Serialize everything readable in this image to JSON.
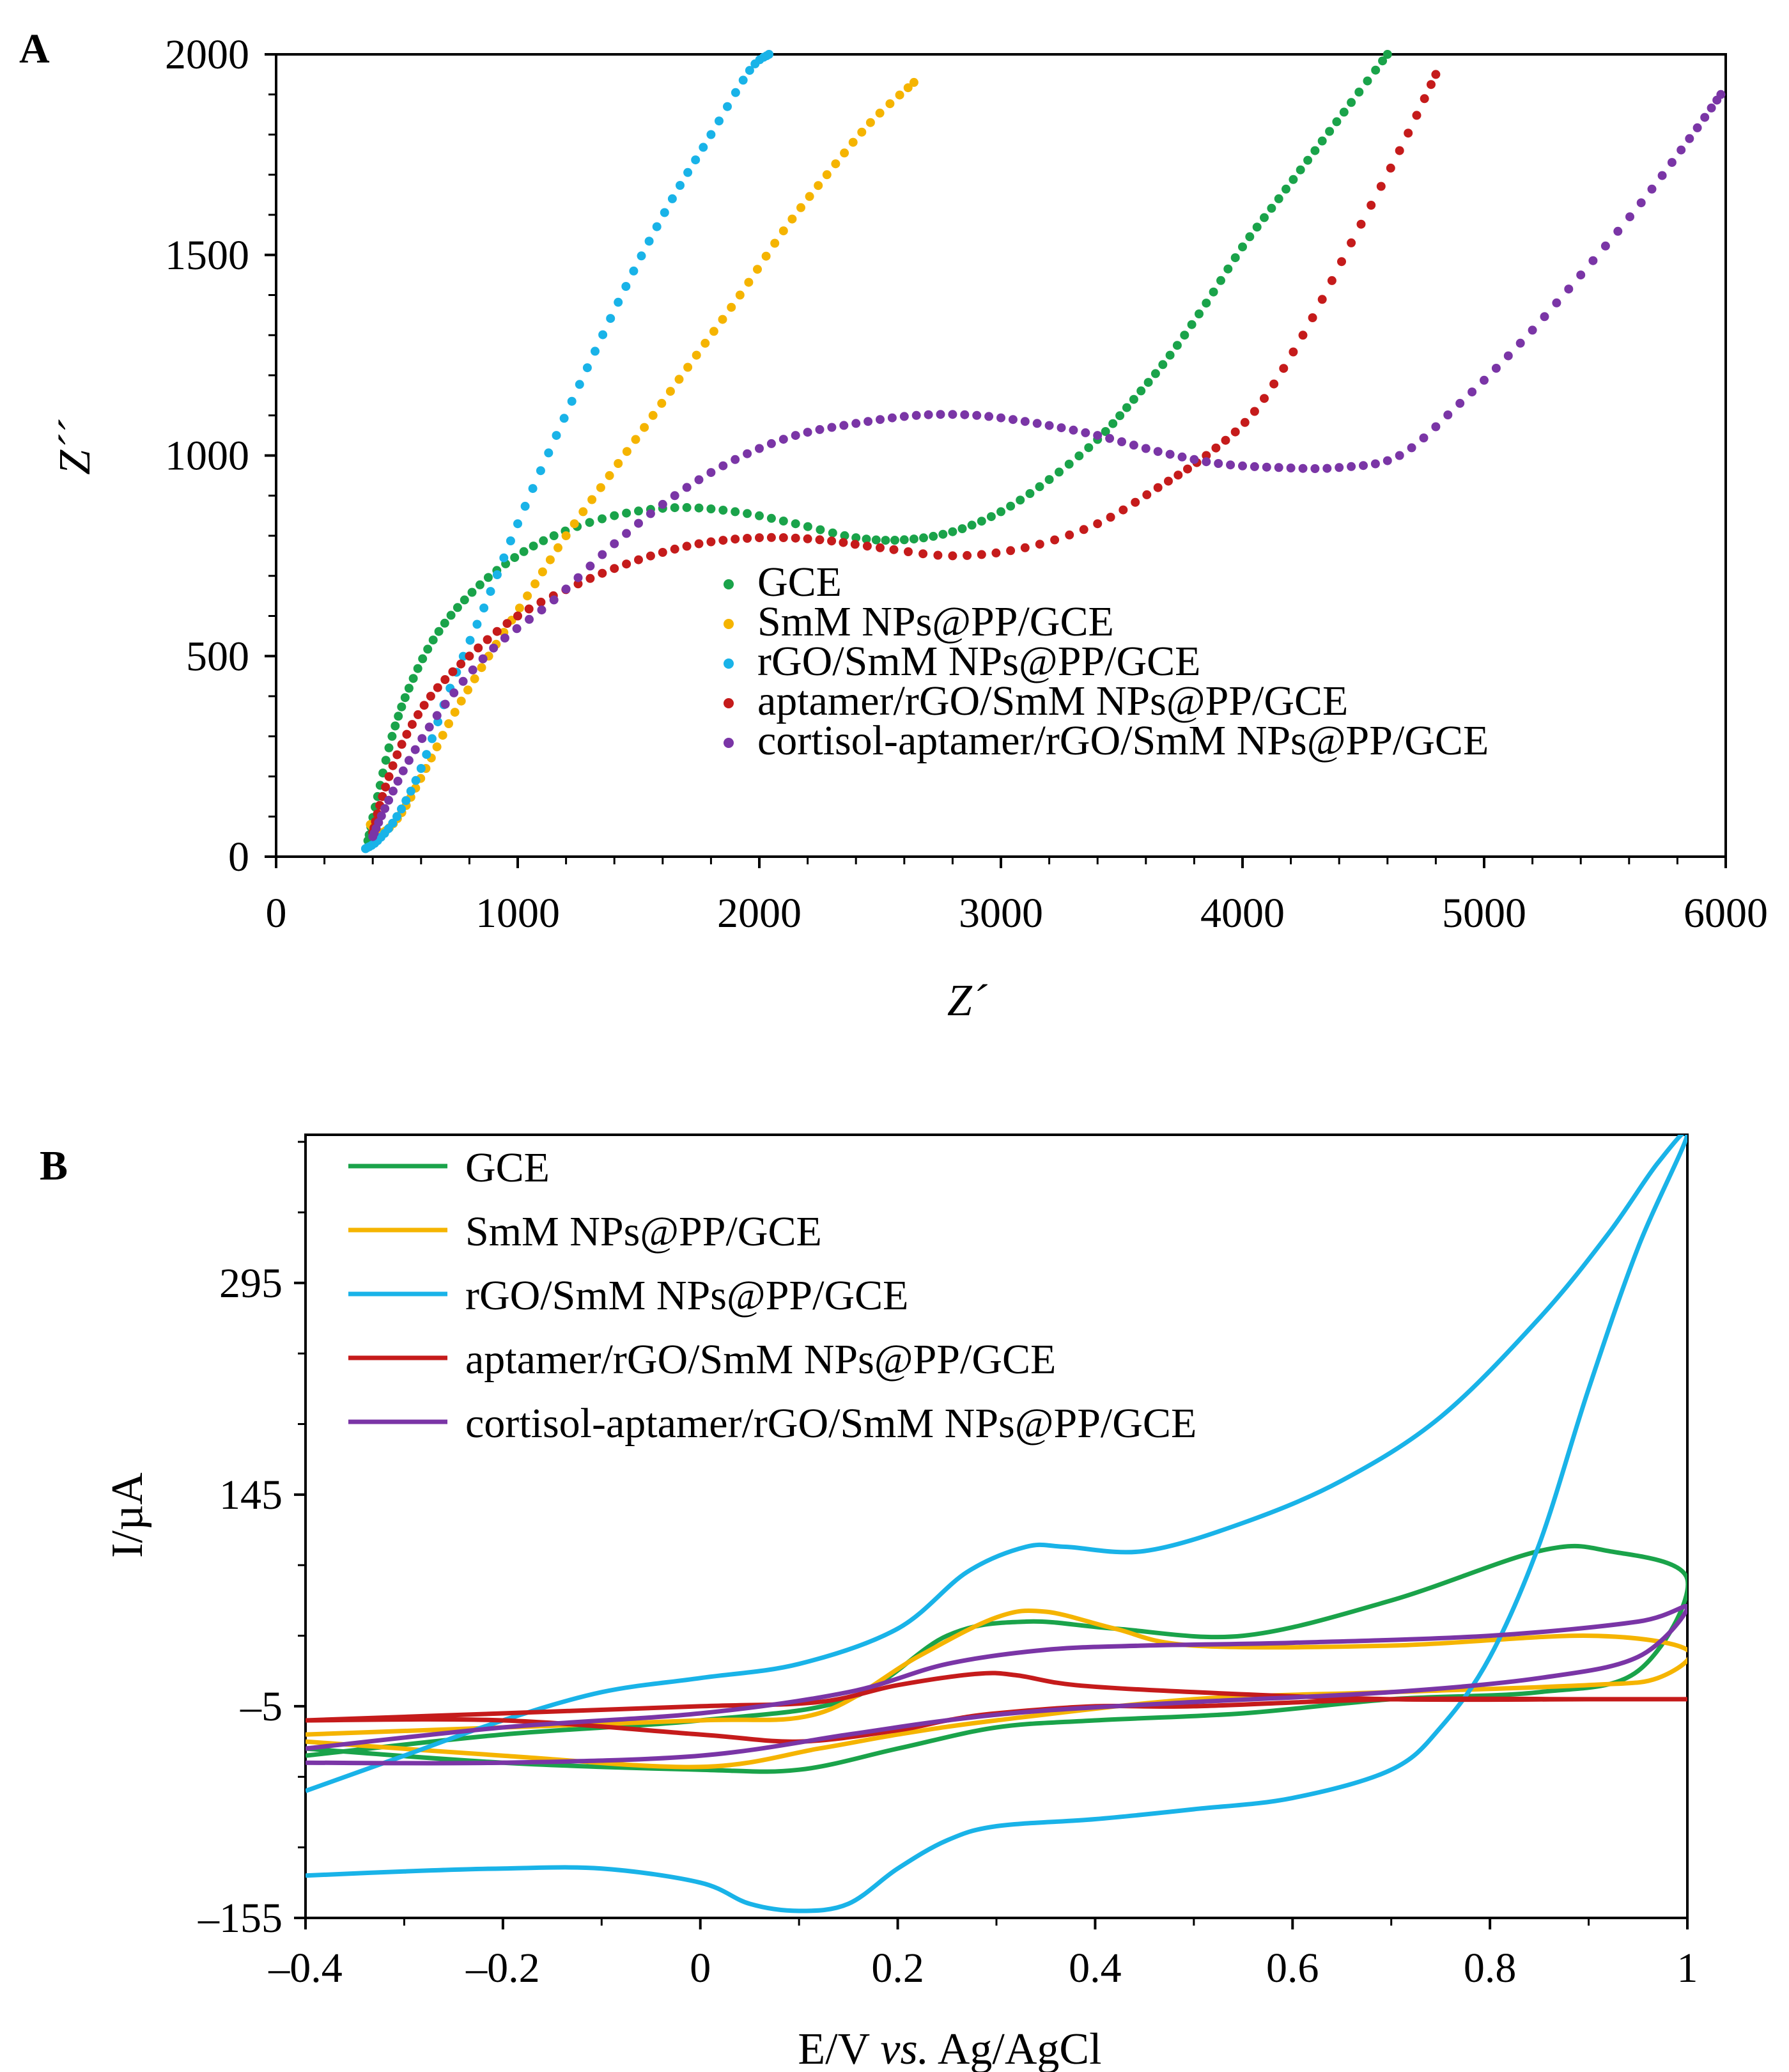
{
  "chart_data": [
    {
      "panel": "A",
      "type": "scatter",
      "title": "",
      "xlabel": "Z´",
      "ylabel": "Z´´",
      "xlim": [
        0,
        6000
      ],
      "ylim": [
        0,
        2000
      ],
      "xticks": [
        0,
        1000,
        2000,
        3000,
        4000,
        5000,
        6000
      ],
      "yticks": [
        0,
        500,
        1000,
        1500,
        2000
      ],
      "grid": false,
      "legend_position": "bottom-right",
      "series": [
        {
          "name": "GCE",
          "color": "#1aa34a",
          "x": [
            380,
            420,
            480,
            550,
            650,
            780,
            950,
            1150,
            1400,
            1650,
            1900,
            2150,
            2400,
            2600,
            2800,
            3000,
            3200,
            3400,
            3550,
            3700,
            3850,
            4000,
            4150,
            4300,
            4450,
            4600
          ],
          "y": [
            40,
            150,
            300,
            420,
            540,
            640,
            730,
            800,
            850,
            870,
            860,
            830,
            795,
            790,
            810,
            860,
            940,
            1040,
            1140,
            1250,
            1380,
            1520,
            1640,
            1760,
            1880,
            2000
          ]
        },
        {
          "name": "SmM NPs@PP/GCE",
          "color": "#f5b400",
          "x": [
            390,
            440,
            520,
            620,
            740,
            880,
            1040,
            1200,
            1380,
            1560,
            1740,
            1920,
            2100,
            2280,
            2460,
            2640
          ],
          "y": [
            80,
            60,
            110,
            220,
            360,
            500,
            650,
            800,
            950,
            1100,
            1250,
            1400,
            1560,
            1700,
            1830,
            1930
          ]
        },
        {
          "name": "rGO/SmM NPs@PP/GCE",
          "color": "#19b3e8",
          "x": [
            370,
            420,
            500,
            600,
            720,
            860,
            1000,
            1160,
            1320,
            1480,
            1640,
            1800,
            1960,
            2040
          ],
          "y": [
            20,
            40,
            100,
            220,
            420,
            620,
            830,
            1050,
            1260,
            1460,
            1640,
            1800,
            1960,
            2000
          ]
        },
        {
          "name": "aptamer/rGO/SmM NPs@PP/GCE",
          "color": "#c51b1b",
          "x": [
            400,
            440,
            520,
            640,
            800,
            1000,
            1250,
            1500,
            1750,
            2000,
            2250,
            2500,
            2800,
            3100,
            3400,
            3650,
            3850,
            4050,
            4250,
            4450,
            4650,
            4800
          ],
          "y": [
            60,
            150,
            280,
            400,
            500,
            600,
            680,
            740,
            780,
            795,
            790,
            770,
            750,
            770,
            830,
            920,
            1000,
            1110,
            1300,
            1530,
            1760,
            1950
          ]
        },
        {
          "name": "cortisol-aptamer/rGO/SmM NPs@PP/GCE",
          "color": "#7a35a6",
          "x": [
            400,
            450,
            550,
            700,
            900,
            1150,
            1400,
            1650,
            1900,
            2150,
            2400,
            2650,
            2900,
            3150,
            3400,
            3650,
            3900,
            4150,
            4400,
            4650,
            4900,
            5150,
            5400,
            5650,
            5850,
            5980
          ],
          "y": [
            50,
            120,
            240,
            380,
            520,
            640,
            780,
            900,
            990,
            1050,
            1080,
            1100,
            1100,
            1080,
            1050,
            1010,
            980,
            970,
            970,
            1000,
            1130,
            1280,
            1450,
            1630,
            1790,
            1900
          ]
        }
      ]
    },
    {
      "panel": "B",
      "type": "line",
      "title": "",
      "xlabel_pre": "E/V ",
      "xlabel_italic": "vs.",
      "xlabel_post": " Ag/AgCl",
      "ylabel": "I/µA",
      "xlim": [
        -0.4,
        1
      ],
      "ylim": [
        -155,
        400
      ],
      "xticks": [
        -0.4,
        -0.2,
        0,
        0.2,
        0.4,
        0.6,
        0.8,
        1
      ],
      "xtick_labels": [
        "–0.4",
        "–0.2",
        "0",
        "0.2",
        "0.4",
        "0.6",
        "0.8",
        "1"
      ],
      "yticks": [
        -155,
        -5,
        145,
        295
      ],
      "ytick_labels": [
        "–155",
        "–5",
        "145",
        "295"
      ],
      "grid": false,
      "legend_position": "top-left",
      "series": [
        {
          "name": "GCE",
          "color": "#1aa34a",
          "x": [
            -0.4,
            -0.2,
            0,
            0.15,
            0.25,
            0.33,
            0.42,
            0.55,
            0.7,
            0.85,
            0.92,
            1,
            0.95,
            0.85,
            0.7,
            0.55,
            0.4,
            0.3,
            0.2,
            0.1,
            0,
            -0.2,
            -0.4
          ],
          "y": [
            -40,
            -25,
            -15,
            0,
            45,
            55,
            50,
            45,
            70,
            105,
            105,
            85,
            20,
            5,
            0,
            -10,
            -15,
            -20,
            -35,
            -50,
            -50,
            -45,
            -35
          ]
        },
        {
          "name": "SmM NPs@PP/GCE",
          "color": "#f5b400",
          "x": [
            -0.4,
            -0.2,
            0,
            0.12,
            0.22,
            0.3,
            0.35,
            0.42,
            0.5,
            0.7,
            0.9,
            1,
            0.97,
            0.9,
            0.7,
            0.5,
            0.3,
            0.2,
            0.12,
            0,
            -0.2,
            -0.4
          ],
          "y": [
            -25,
            -20,
            -15,
            -10,
            30,
            58,
            62,
            50,
            38,
            38,
            45,
            35,
            15,
            10,
            5,
            0,
            -15,
            -25,
            -35,
            -48,
            -40,
            -30
          ]
        },
        {
          "name": "rGO/SmM NPs@PP/GCE",
          "color": "#19b3e8",
          "x": [
            -0.4,
            -0.3,
            -0.2,
            -0.1,
            0,
            0.1,
            0.2,
            0.27,
            0.33,
            0.37,
            0.45,
            0.55,
            0.65,
            0.75,
            0.85,
            0.92,
            0.97,
            1,
            0.95,
            0.9,
            0.85,
            0.8,
            0.75,
            0.7,
            0.6,
            0.5,
            0.4,
            0.3,
            0.25,
            0.2,
            0.15,
            0.1,
            0.05,
            0,
            -0.1,
            -0.2,
            -0.3,
            -0.4
          ],
          "y": [
            -65,
            -40,
            -15,
            5,
            15,
            25,
            50,
            90,
            108,
            108,
            105,
            125,
            155,
            200,
            270,
            330,
            380,
            400,
            320,
            220,
            110,
            30,
            -20,
            -50,
            -70,
            -78,
            -85,
            -90,
            -100,
            -120,
            -145,
            -150,
            -145,
            -130,
            -120,
            -120,
            -122,
            -125
          ]
        },
        {
          "name": "aptamer/rGO/SmM NPs@PP/GCE",
          "color": "#c51b1b",
          "x": [
            -0.4,
            -0.2,
            0,
            0.12,
            0.2,
            0.28,
            0.32,
            0.38,
            0.5,
            0.7,
            0.9,
            1,
            0.9,
            0.7,
            0.5,
            0.4,
            0.3,
            0.25,
            0.2,
            0.1,
            0,
            -0.2,
            -0.4
          ],
          "y": [
            -15,
            -10,
            -5,
            -2,
            10,
            18,
            17,
            10,
            5,
            0,
            0,
            0,
            0,
            0,
            -5,
            -5,
            -10,
            -15,
            -22,
            -30,
            -25,
            -15,
            -15
          ]
        },
        {
          "name": "cortisol-aptamer/rGO/SmM NPs@PP/GCE",
          "color": "#7a35a6",
          "x": [
            -0.4,
            -0.2,
            0,
            0.15,
            0.25,
            0.35,
            0.45,
            0.6,
            0.8,
            0.95,
            1,
            0.95,
            0.85,
            0.7,
            0.5,
            0.35,
            0.25,
            0.15,
            0,
            -0.2,
            -0.4
          ],
          "y": [
            -35,
            -20,
            -10,
            5,
            25,
            35,
            38,
            40,
            45,
            55,
            65,
            30,
            15,
            5,
            -2,
            -8,
            -15,
            -25,
            -40,
            -45,
            -45
          ]
        }
      ]
    }
  ]
}
